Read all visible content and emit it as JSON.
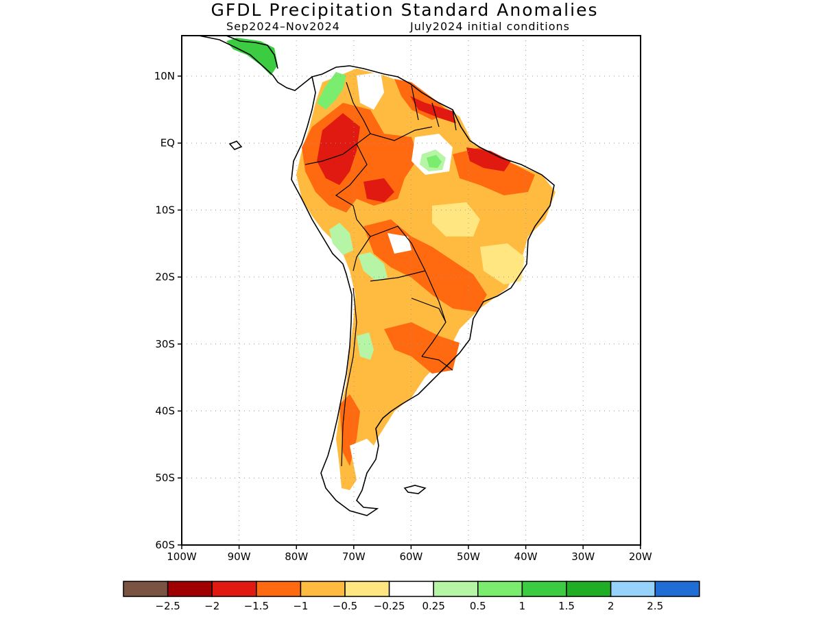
{
  "title": "GFDL Precipitation Standard Anomalies",
  "subtitle_left": "Sep2024–Nov2024",
  "subtitle_right": "July2024 initial conditions",
  "lat_labels": [
    "10N",
    "EQ",
    "10S",
    "20S",
    "30S",
    "40S",
    "50S",
    "60S"
  ],
  "lon_labels": [
    "100W",
    "90W",
    "80W",
    "70W",
    "60W",
    "50W",
    "40W",
    "30W",
    "20W"
  ],
  "colorbar": {
    "colors": [
      "#7b5343",
      "#a00000",
      "#e01a10",
      "#ff6a10",
      "#ffbb40",
      "#ffe680",
      "#ffffff",
      "#b5f5a5",
      "#7aec6e",
      "#3bcc41",
      "#1fae24",
      "#96d2fa",
      "#1e6ed6"
    ],
    "labels": [
      "−2.5",
      "−2",
      "−1.5",
      "−1",
      "−0.5",
      "−0.25",
      "0.25",
      "0.5",
      "1",
      "1.5",
      "2",
      "2.5"
    ]
  }
}
